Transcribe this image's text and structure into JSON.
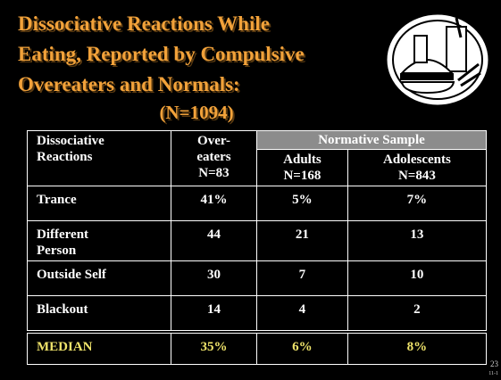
{
  "title_lines": [
    "Dissociative Reactions While",
    "Eating, Reported by Compulsive",
    "Overeaters and Normals:"
  ],
  "subtitle": "(N=1094)",
  "table": {
    "group_header": "Normative Sample",
    "columns": [
      [
        "Dissociative",
        "Reactions"
      ],
      [
        "Over-",
        "eaters",
        "N=83"
      ],
      [
        "Adults",
        "N=168"
      ],
      [
        "Adolescents",
        "N=843"
      ]
    ],
    "rows": [
      [
        [
          "Trance"
        ],
        "41%",
        "5%",
        "7%"
      ],
      [
        [
          "Different",
          "Person"
        ],
        "44",
        "21",
        "13"
      ],
      [
        [
          "Outside Self"
        ],
        "30",
        "7",
        "10"
      ],
      [
        [
          "Blackout"
        ],
        "14",
        "4",
        "2"
      ]
    ],
    "footer_row": [
      "MEDIAN",
      "35%",
      "6%",
      "8%"
    ]
  },
  "page_number": "23",
  "page_code": "11-1"
}
